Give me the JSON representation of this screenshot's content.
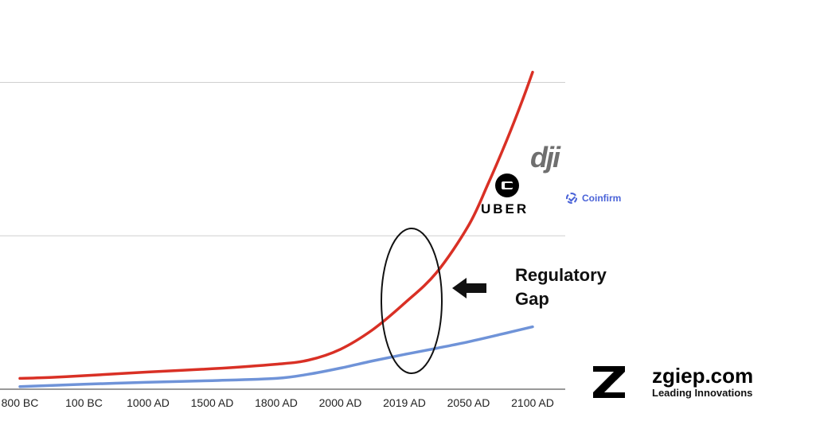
{
  "chart_data": {
    "type": "line",
    "categories": [
      "800 BC",
      "100 BC",
      "1000 AD",
      "1500 AD",
      "1800 AD",
      "2000 AD",
      "2019 AD",
      "2050 AD",
      "2100 AD"
    ],
    "series": [
      {
        "color": "#d93025",
        "points": [
          [
            0.0,
            5.3
          ],
          [
            0.5,
            5.8
          ],
          [
            1.0,
            6.6
          ],
          [
            2.0,
            8.4
          ],
          [
            3.0,
            10.0
          ],
          [
            4.0,
            12.2
          ],
          [
            4.5,
            14.2
          ],
          [
            5.0,
            19.5
          ],
          [
            5.5,
            29
          ],
          [
            6.0,
            42
          ],
          [
            6.5,
            57
          ],
          [
            7.0,
            80
          ],
          [
            7.3,
            100
          ],
          [
            7.6,
            122
          ],
          [
            7.85,
            142
          ],
          [
            8.0,
            155
          ]
        ]
      },
      {
        "color": "#6f93d8",
        "points": [
          [
            0.0,
            1.3
          ],
          [
            1.0,
            2.4
          ],
          [
            2.0,
            3.4
          ],
          [
            3.0,
            4.2
          ],
          [
            4.0,
            5.3
          ],
          [
            4.5,
            7.3
          ],
          [
            5.0,
            10.3
          ],
          [
            5.5,
            13.8
          ],
          [
            6.0,
            17.0
          ],
          [
            6.5,
            20.0
          ],
          [
            7.0,
            23.2
          ],
          [
            7.5,
            26.8
          ],
          [
            8.0,
            30.5
          ]
        ]
      }
    ],
    "ylim": [
      0,
      150
    ],
    "grid": true,
    "annotations": [
      {
        "kind": "ellipse",
        "around": "2019 AD"
      },
      {
        "kind": "arrow",
        "points": "left"
      },
      {
        "kind": "label",
        "text": "Regulatory Gap"
      }
    ]
  },
  "annotation_label": {
    "line1": "Regulatory",
    "line2": "Gap"
  },
  "logos": {
    "uber": "UBER",
    "dji": "dji",
    "coinfirm": "Coinfirm",
    "brand": {
      "name": "zgiep.com",
      "tagline": "Leading Innovations"
    }
  }
}
